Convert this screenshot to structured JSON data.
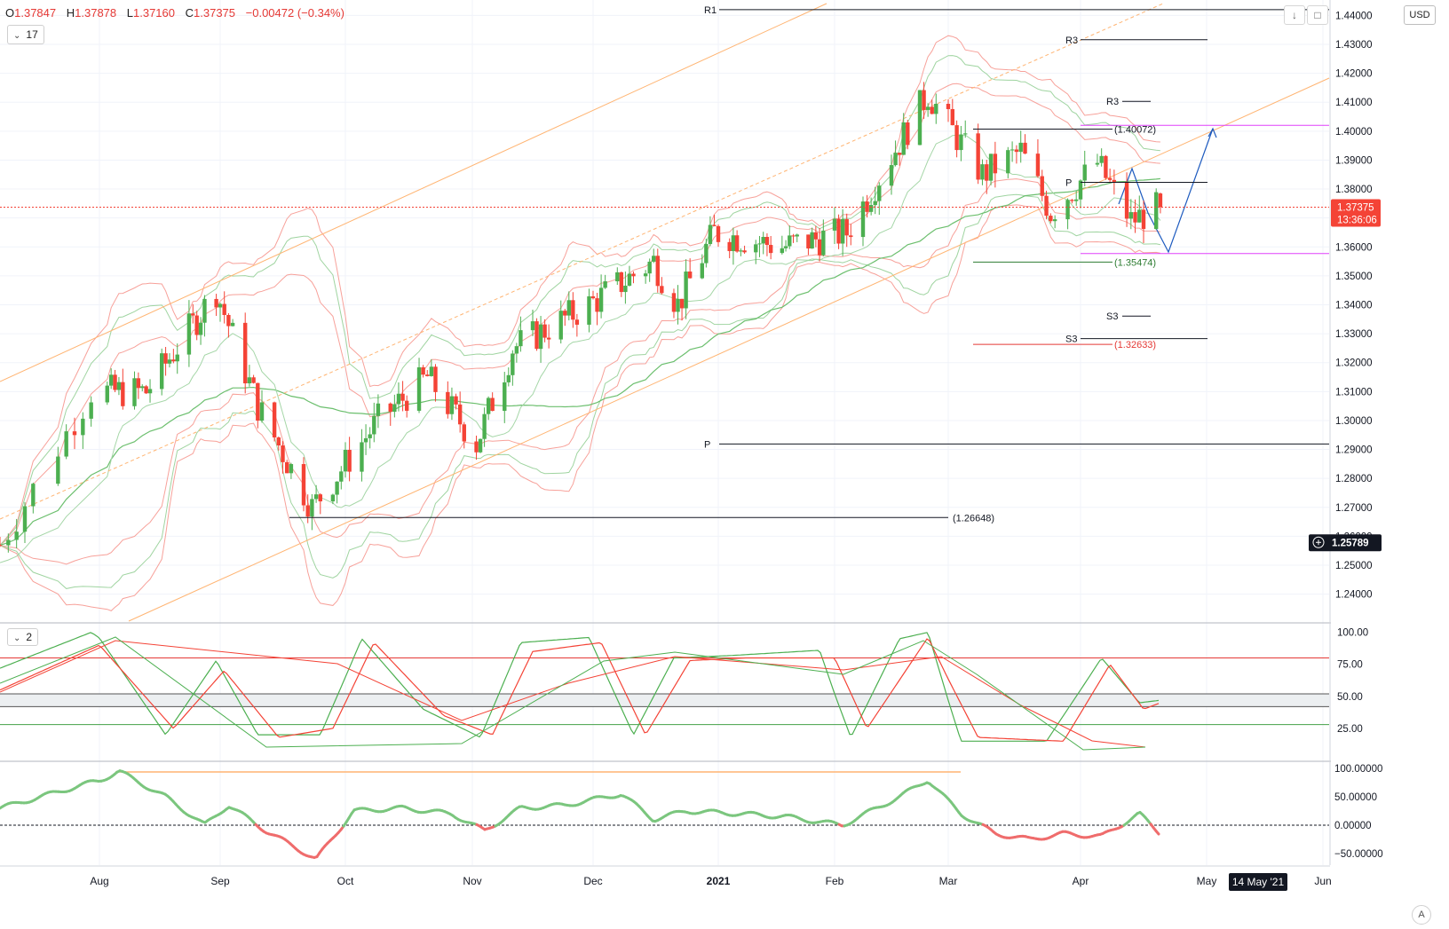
{
  "ohlc": {
    "open_label": "O",
    "open": "1.37847",
    "high_label": "H",
    "high": "1.37878",
    "low_label": "L",
    "low": "1.37160",
    "close_label": "C",
    "close": "1.37375",
    "change": "−0.00472 (−0.34%)"
  },
  "toolbar": {
    "currency_label": "USD",
    "auto_label": "A"
  },
  "indicators": {
    "main_count": "17",
    "stoch_count": "2"
  },
  "price_badge": {
    "value": "1.37375",
    "countdown": "13:36:06"
  },
  "crosshair_badge": {
    "value": "1.25789"
  },
  "date_badge": {
    "value": "14 May '21"
  },
  "colors": {
    "up": "#4caf50",
    "down": "#f44336",
    "bb_red": "#f7a19a",
    "bb_green": "#9fd4a0",
    "ma_green": "#6cbf6e",
    "trend_orange": "#ffb472",
    "magenta": "#e040fb",
    "projection_blue": "#2962ff",
    "grid": "#f0f3fa",
    "price_badge": "#f44336"
  },
  "chart_data": [
    {
      "type": "candlestick",
      "title": "",
      "y_axis_ticks": [
        "1.24000",
        "1.25000",
        "1.26000",
        "1.27000",
        "1.28000",
        "1.29000",
        "1.30000",
        "1.31000",
        "1.32000",
        "1.33000",
        "1.34000",
        "1.35000",
        "1.36000",
        "1.37000",
        "1.38000",
        "1.39000",
        "1.40000",
        "1.41000",
        "1.42000",
        "1.43000",
        "1.44000"
      ],
      "x_axis_labels": [
        "Aug",
        "Sep",
        "Oct",
        "Nov",
        "Dec",
        "2021",
        "Feb",
        "Mar",
        "Apr",
        "May",
        "Jun"
      ],
      "ylim": [
        1.232,
        1.443
      ],
      "current_price": 1.37375,
      "price_keypoints": [
        {
          "date": "2020-07-20",
          "close": 1.257
        },
        {
          "date": "2020-07-31",
          "close": 1.31
        },
        {
          "date": "2020-08-13",
          "close": 1.31
        },
        {
          "date": "2020-08-31",
          "close": 1.345
        },
        {
          "date": "2020-09-10",
          "close": 1.305
        },
        {
          "date": "2020-09-23",
          "close": 1.27
        },
        {
          "date": "2020-10-09",
          "close": 1.3
        },
        {
          "date": "2020-10-21",
          "close": 1.315
        },
        {
          "date": "2020-11-02",
          "close": 1.292
        },
        {
          "date": "2020-11-11",
          "close": 1.325
        },
        {
          "date": "2020-11-30",
          "close": 1.34
        },
        {
          "date": "2020-12-16",
          "close": 1.355
        },
        {
          "date": "2020-12-22",
          "close": 1.34
        },
        {
          "date": "2020-12-31",
          "close": 1.365
        },
        {
          "date": "2021-01-18",
          "close": 1.36
        },
        {
          "date": "2021-02-04",
          "close": 1.365
        },
        {
          "date": "2021-02-24",
          "close": 1.413
        },
        {
          "date": "2021-03-09",
          "close": 1.385
        },
        {
          "date": "2021-03-18",
          "close": 1.393
        },
        {
          "date": "2021-03-25",
          "close": 1.372
        },
        {
          "date": "2021-04-05",
          "close": 1.389
        },
        {
          "date": "2021-04-13",
          "close": 1.369
        },
        {
          "date": "2021-04-20",
          "close": 1.3738
        }
      ],
      "pivot_lines": [
        {
          "label": "R1",
          "value": 1.442
        },
        {
          "label": "R3",
          "value": 1.4316
        },
        {
          "label": "R3",
          "value": 1.4103
        },
        {
          "label": "P",
          "value": 1.3823
        },
        {
          "label": "S3",
          "value": 1.3361
        },
        {
          "label": "S3",
          "value": 1.3283
        },
        {
          "label": "P",
          "value": 1.2919
        }
      ],
      "level_labels": [
        {
          "label": "(1.40072)",
          "value": 1.40072
        },
        {
          "label": "(1.35474)",
          "value": 1.35474
        },
        {
          "label": "(1.32633)",
          "value": 1.32633
        },
        {
          "label": "(1.26648)",
          "value": 1.26648
        }
      ]
    },
    {
      "type": "line",
      "title": "",
      "y_axis_ticks": [
        "25.00",
        "50.00",
        "75.00",
        "100.00"
      ],
      "ylim": [
        0,
        106
      ],
      "levels": [
        80,
        52,
        50,
        28
      ],
      "series": [
        {
          "name": "",
          "color": "#4caf50",
          "keypoints": [
            {
              "date": "2020-07-20",
              "v": 72
            },
            {
              "date": "2020-07-31",
              "v": 100
            },
            {
              "date": "2020-08-18",
              "v": 20
            },
            {
              "date": "2020-08-31",
              "v": 78
            },
            {
              "date": "2020-09-10",
              "v": 20
            },
            {
              "date": "2020-09-25",
              "v": 20
            },
            {
              "date": "2020-10-05",
              "v": 95
            },
            {
              "date": "2020-10-20",
              "v": 40
            },
            {
              "date": "2020-11-03",
              "v": 18
            },
            {
              "date": "2020-11-13",
              "v": 92
            },
            {
              "date": "2020-11-30",
              "v": 96
            },
            {
              "date": "2020-12-11",
              "v": 20
            },
            {
              "date": "2020-12-21",
              "v": 80
            },
            {
              "date": "2021-01-05",
              "v": 82
            },
            {
              "date": "2021-01-28",
              "v": 86
            },
            {
              "date": "2021-02-05",
              "v": 18
            },
            {
              "date": "2021-02-17",
              "v": 95
            },
            {
              "date": "2021-02-24",
              "v": 100
            },
            {
              "date": "2021-03-04",
              "v": 15
            },
            {
              "date": "2021-03-24",
              "v": 15
            },
            {
              "date": "2021-04-06",
              "v": 80
            },
            {
              "date": "2021-04-15",
              "v": 45
            },
            {
              "date": "2021-04-20",
              "v": 47
            }
          ]
        },
        {
          "name": "",
          "color": "#f44336",
          "keypoints": [
            {
              "date": "2020-07-20",
              "v": 55
            },
            {
              "date": "2020-08-01",
              "v": 90
            },
            {
              "date": "2020-08-20",
              "v": 25
            },
            {
              "date": "2020-09-02",
              "v": 70
            },
            {
              "date": "2020-09-15",
              "v": 18
            },
            {
              "date": "2020-09-28",
              "v": 25
            },
            {
              "date": "2020-10-08",
              "v": 92
            },
            {
              "date": "2020-10-25",
              "v": 35
            },
            {
              "date": "2020-11-06",
              "v": 20
            },
            {
              "date": "2020-11-16",
              "v": 85
            },
            {
              "date": "2020-12-03",
              "v": 92
            },
            {
              "date": "2020-12-14",
              "v": 20
            },
            {
              "date": "2020-12-25",
              "v": 78
            },
            {
              "date": "2021-01-08",
              "v": 80
            },
            {
              "date": "2021-02-01",
              "v": 80
            },
            {
              "date": "2021-02-09",
              "v": 25
            },
            {
              "date": "2021-02-24",
              "v": 96
            },
            {
              "date": "2021-03-08",
              "v": 18
            },
            {
              "date": "2021-03-28",
              "v": 15
            },
            {
              "date": "2021-04-08",
              "v": 75
            },
            {
              "date": "2021-04-16",
              "v": 40
            },
            {
              "date": "2021-04-20",
              "v": 45
            }
          ]
        }
      ]
    },
    {
      "type": "line",
      "title": "",
      "y_axis_ticks": [
        "−50.00000",
        "0.00000",
        "50.00000",
        "100.00000"
      ],
      "ylim": [
        -70,
        108
      ],
      "zero_line": 0,
      "series": [
        {
          "name": "",
          "color": "#4caf50",
          "keypoints": [
            {
              "date": "2020-07-20",
              "v": 30
            },
            {
              "date": "2020-07-31",
              "v": 75
            },
            {
              "date": "2020-08-06",
              "v": 95
            },
            {
              "date": "2020-08-18",
              "v": 50
            },
            {
              "date": "2020-08-28",
              "v": 0
            },
            {
              "date": "2020-09-03",
              "v": 35
            },
            {
              "date": "2020-09-12",
              "v": -10
            },
            {
              "date": "2020-09-24",
              "v": -60
            },
            {
              "date": "2020-10-03",
              "v": 25
            },
            {
              "date": "2020-10-15",
              "v": 30
            },
            {
              "date": "2020-10-27",
              "v": 20
            },
            {
              "date": "2020-11-04",
              "v": -10
            },
            {
              "date": "2020-11-13",
              "v": 30
            },
            {
              "date": "2020-11-24",
              "v": 35
            },
            {
              "date": "2020-12-08",
              "v": 55
            },
            {
              "date": "2020-12-16",
              "v": 10
            },
            {
              "date": "2020-12-24",
              "v": 25
            },
            {
              "date": "2021-01-07",
              "v": 20
            },
            {
              "date": "2021-01-19",
              "v": 15
            },
            {
              "date": "2021-02-03",
              "v": 0
            },
            {
              "date": "2021-02-17",
              "v": 50
            },
            {
              "date": "2021-02-24",
              "v": 80
            },
            {
              "date": "2021-03-04",
              "v": 20
            },
            {
              "date": "2021-03-12",
              "v": -15
            },
            {
              "date": "2021-03-20",
              "v": -25
            },
            {
              "date": "2021-03-28",
              "v": -15
            },
            {
              "date": "2021-04-06",
              "v": -20
            },
            {
              "date": "2021-04-15",
              "v": 20
            },
            {
              "date": "2021-04-20",
              "v": -15
            }
          ]
        }
      ]
    }
  ]
}
